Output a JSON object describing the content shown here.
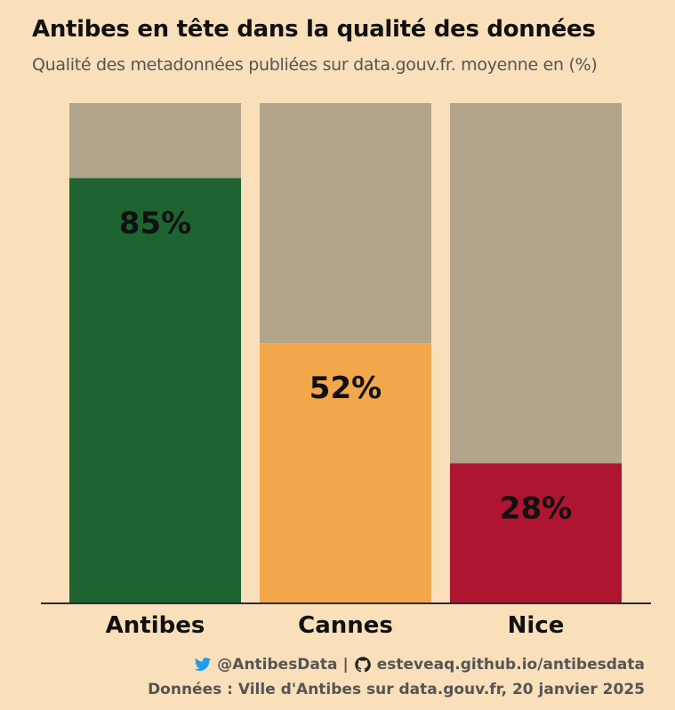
{
  "header": {
    "title": "Antibes en tête dans la qualité des données",
    "subtitle": "Qualité des metadonnées publiées sur data.gouv.fr. moyenne en (%)"
  },
  "caption": {
    "twitter": "@AntibesData",
    "separator": "|",
    "github": "esteveaq.github.io/antibesdata",
    "source": "Données : Ville d'Antibes sur data.gouv.fr, 20 janvier 2025"
  },
  "colors": {
    "background": "#f9dfba",
    "remainder": "#b3a48c",
    "axis": "#2a2a3a",
    "twitter": "#1d9bf0"
  },
  "chart_data": {
    "type": "bar",
    "stacked_to": 100,
    "categories": [
      "Antibes",
      "Cannes",
      "Nice"
    ],
    "values": [
      85,
      52,
      28
    ],
    "value_labels": [
      "85%",
      "52%",
      "28%"
    ],
    "bar_colors": [
      "#1e6431",
      "#f2a74b",
      "#ad1530"
    ],
    "ylim": [
      0,
      100
    ],
    "grid": false,
    "legend": "none"
  }
}
